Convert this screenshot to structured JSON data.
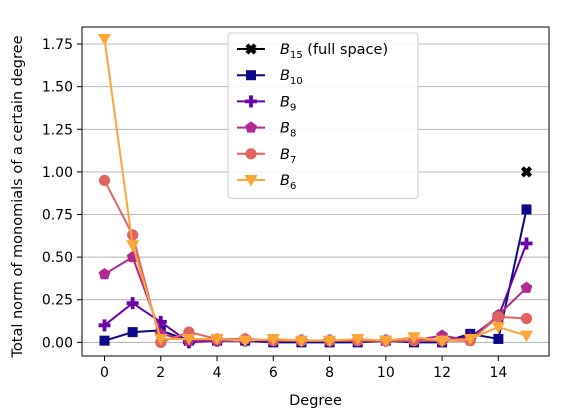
{
  "chart_data": {
    "type": "line",
    "title": "",
    "xlabel": "Degree",
    "ylabel": "Total norm of monomials of a certain degree",
    "xlim": [
      -0.8,
      15.8
    ],
    "ylim": [
      -0.08,
      1.85
    ],
    "xticks": [
      0,
      2,
      4,
      6,
      8,
      10,
      12,
      14
    ],
    "xtick_labels": [
      "0",
      "2",
      "4",
      "6",
      "8",
      "10",
      "12",
      "14"
    ],
    "yticks": [
      0.0,
      0.25,
      0.5,
      0.75,
      1.0,
      1.25,
      1.5,
      1.75
    ],
    "ytick_labels": [
      "0.00",
      "0.25",
      "0.50",
      "0.75",
      "1.00",
      "1.25",
      "1.50",
      "1.75"
    ],
    "grid": "horizontal",
    "legend_position": "upper-center",
    "series": [
      {
        "name_main": "B",
        "name_sub": "15",
        "name_suffix": " (full space)",
        "color": "#000000",
        "marker": "x",
        "x": [
          15
        ],
        "y": [
          1.0
        ]
      },
      {
        "name_main": "B",
        "name_sub": "10",
        "name_suffix": "",
        "color": "#0d0887",
        "marker": "square",
        "x": [
          0,
          1,
          2,
          3,
          4,
          5,
          6,
          7,
          8,
          9,
          10,
          11,
          12,
          13,
          14,
          15
        ],
        "y": [
          0.01,
          0.06,
          0.07,
          0.01,
          0.01,
          0.01,
          0.0,
          0.0,
          0.0,
          0.0,
          0.01,
          0.0,
          0.0,
          0.05,
          0.02,
          0.78
        ]
      },
      {
        "name_main": "B",
        "name_sub": "9",
        "name_suffix": "",
        "color": "#6a00a8",
        "marker": "plus",
        "x": [
          0,
          1,
          2,
          3,
          4,
          5,
          6,
          7,
          8,
          9,
          10,
          11,
          12,
          13,
          14,
          15
        ],
        "y": [
          0.1,
          0.23,
          0.12,
          0.0,
          0.01,
          0.01,
          0.01,
          0.01,
          0.01,
          0.01,
          0.01,
          0.01,
          0.01,
          0.03,
          0.15,
          0.58
        ]
      },
      {
        "name_main": "B",
        "name_sub": "8",
        "name_suffix": "",
        "color": "#b12a90",
        "marker": "pentagon",
        "x": [
          0,
          1,
          2,
          3,
          4,
          5,
          6,
          7,
          8,
          9,
          10,
          11,
          12,
          13,
          14,
          15
        ],
        "y": [
          0.4,
          0.5,
          0.05,
          0.01,
          0.01,
          0.02,
          0.01,
          0.01,
          0.01,
          0.01,
          0.01,
          0.01,
          0.04,
          0.01,
          0.16,
          0.32
        ]
      },
      {
        "name_main": "B",
        "name_sub": "7",
        "name_suffix": "",
        "color": "#e16462",
        "marker": "circle",
        "x": [
          0,
          1,
          2,
          3,
          4,
          5,
          6,
          7,
          8,
          9,
          10,
          11,
          12,
          13,
          14,
          15
        ],
        "y": [
          0.95,
          0.63,
          0.0,
          0.06,
          0.02,
          0.02,
          0.01,
          0.01,
          0.01,
          0.01,
          0.01,
          0.01,
          0.01,
          0.01,
          0.15,
          0.14
        ]
      },
      {
        "name_main": "B",
        "name_sub": "6",
        "name_suffix": "",
        "color": "#fca636",
        "marker": "triangle-down",
        "x": [
          0,
          1,
          2,
          3,
          4,
          5,
          6,
          7,
          8,
          9,
          10,
          11,
          12,
          13,
          14,
          15
        ],
        "y": [
          1.78,
          0.57,
          0.02,
          0.02,
          0.02,
          0.01,
          0.02,
          0.01,
          0.01,
          0.02,
          0.01,
          0.03,
          0.01,
          0.02,
          0.09,
          0.04
        ]
      }
    ]
  }
}
